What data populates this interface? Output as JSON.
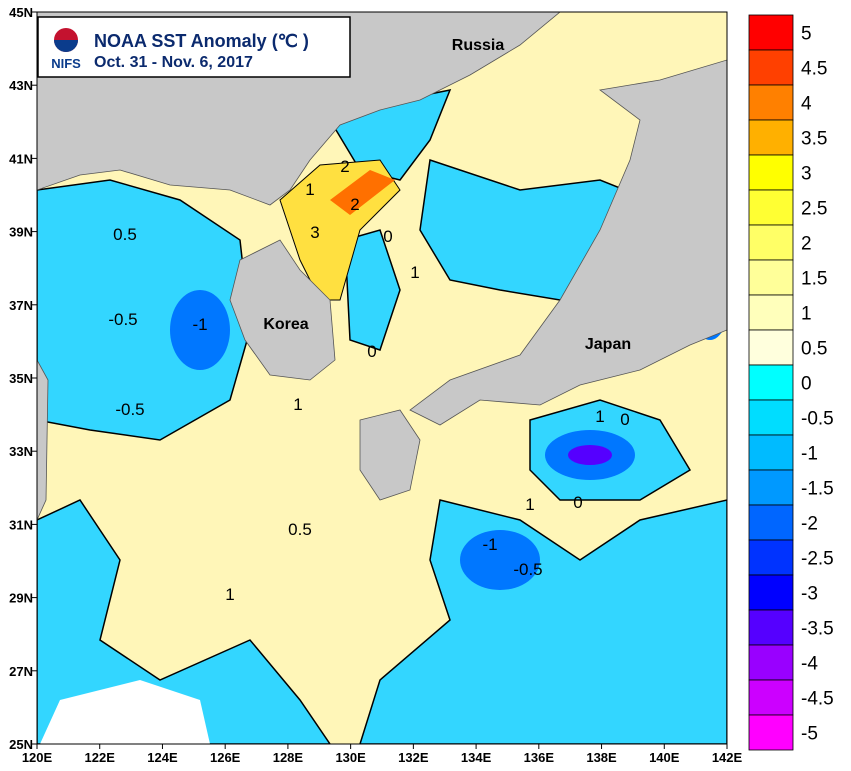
{
  "header": {
    "title": "NOAA SST Anomaly (℃ )",
    "period": "Oct. 31 - Nov. 6, 2017",
    "logo_text": "NIFS"
  },
  "map": {
    "xlim": [
      120,
      142
    ],
    "ylim": [
      25,
      45
    ],
    "xticks": [
      {
        "value": 120,
        "label": "120E"
      },
      {
        "value": 122,
        "label": "122E"
      },
      {
        "value": 124,
        "label": "124E"
      },
      {
        "value": 126,
        "label": "126E"
      },
      {
        "value": 128,
        "label": "128E"
      },
      {
        "value": 130,
        "label": "130E"
      },
      {
        "value": 132,
        "label": "132E"
      },
      {
        "value": 134,
        "label": "134E"
      },
      {
        "value": 136,
        "label": "136E"
      },
      {
        "value": 138,
        "label": "138E"
      },
      {
        "value": 140,
        "label": "140E"
      },
      {
        "value": 142,
        "label": "142E"
      }
    ],
    "yticks": [
      {
        "value": 25,
        "label": "25N"
      },
      {
        "value": 27,
        "label": "27N"
      },
      {
        "value": 29,
        "label": "29N"
      },
      {
        "value": 31,
        "label": "31N"
      },
      {
        "value": 33,
        "label": "33N"
      },
      {
        "value": 35,
        "label": "35N"
      },
      {
        "value": 37,
        "label": "37N"
      },
      {
        "value": 39,
        "label": "39N"
      },
      {
        "value": 41,
        "label": "41N"
      },
      {
        "value": 43,
        "label": "43N"
      },
      {
        "value": 45,
        "label": "45N"
      }
    ],
    "place_labels": [
      "Russia",
      "Korea",
      "Japan"
    ],
    "contour_labels": [
      0.5,
      -0.5,
      -1,
      2,
      3,
      1,
      0,
      1,
      2,
      0,
      1,
      0.5,
      -0.5,
      1,
      -1,
      1,
      0,
      -0.5,
      1,
      0
    ]
  },
  "colorbar": {
    "levels": [
      {
        "value": 5,
        "color": "#ff0000"
      },
      {
        "value": 4.5,
        "color": "#ff4000"
      },
      {
        "value": 4,
        "color": "#ff8000"
      },
      {
        "value": 3.5,
        "color": "#ffb000"
      },
      {
        "value": 3,
        "color": "#ffff00"
      },
      {
        "value": 2.5,
        "color": "#ffff33"
      },
      {
        "value": 2,
        "color": "#ffff66"
      },
      {
        "value": 1.5,
        "color": "#ffff99"
      },
      {
        "value": 1,
        "color": "#ffffbb"
      },
      {
        "value": 0.5,
        "color": "#ffffdd"
      },
      {
        "value": 0,
        "color": "#00ffff"
      },
      {
        "value": -0.5,
        "color": "#00ddff"
      },
      {
        "value": -1,
        "color": "#00bbff"
      },
      {
        "value": -1.5,
        "color": "#0099ff"
      },
      {
        "value": -2,
        "color": "#0066ff"
      },
      {
        "value": -2.5,
        "color": "#0033ff"
      },
      {
        "value": -3,
        "color": "#0000ff"
      },
      {
        "value": -3.5,
        "color": "#5500ff"
      },
      {
        "value": -4,
        "color": "#9900ff"
      },
      {
        "value": -4.5,
        "color": "#cc00ff"
      },
      {
        "value": -5,
        "color": "#ff00ff"
      }
    ]
  }
}
